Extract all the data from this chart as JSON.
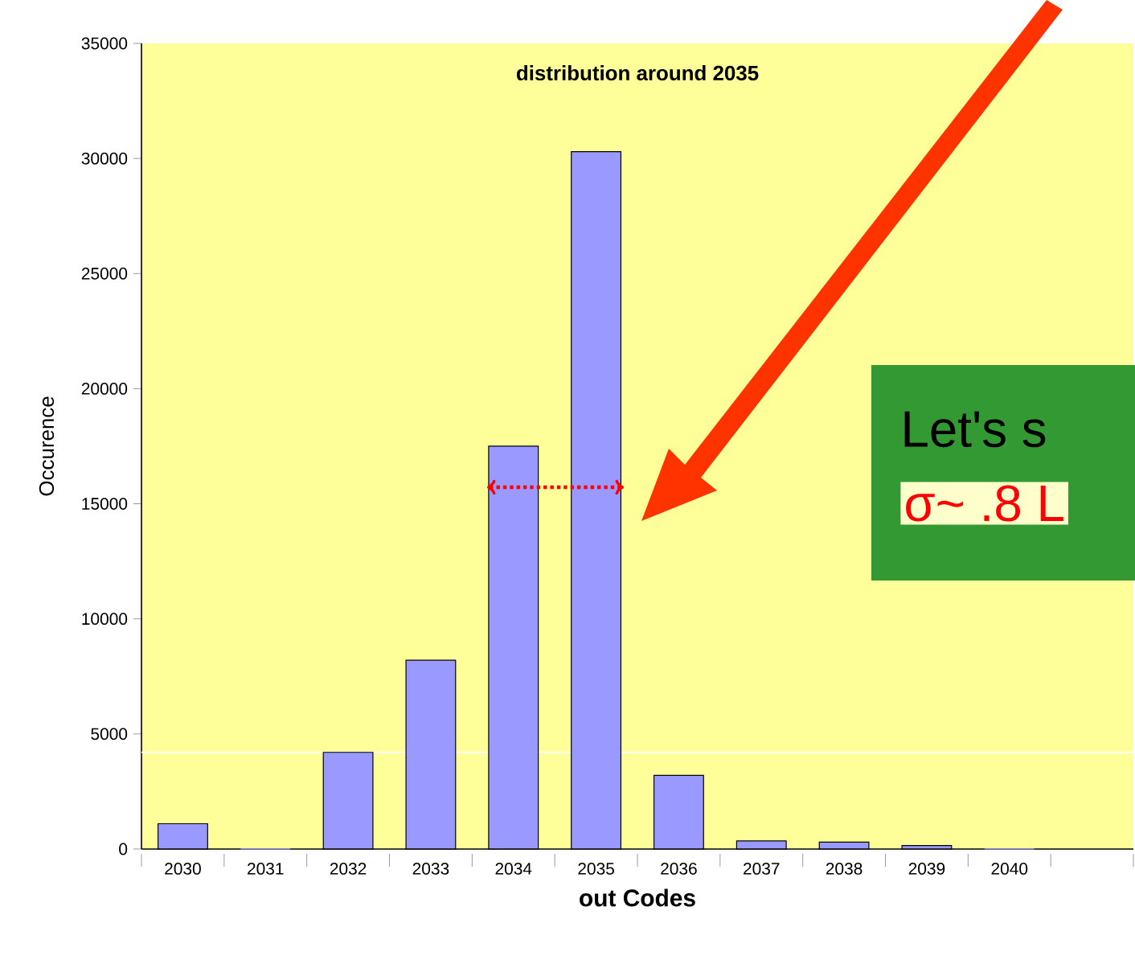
{
  "chart_data": {
    "type": "bar",
    "title": "distribution around 2035",
    "xlabel": "out Codes",
    "ylabel": "Occurence",
    "categories": [
      "2030",
      "2031",
      "2032",
      "2033",
      "2034",
      "2035",
      "2036",
      "2037",
      "2038",
      "2039",
      "2040",
      null
    ],
    "values": [
      1100,
      0,
      4200,
      8200,
      17500,
      30300,
      3200,
      350,
      300,
      150,
      0,
      null
    ],
    "color": "#9999ff",
    "ylim": [
      0,
      35000
    ],
    "yticks": [
      0,
      5000,
      10000,
      15000,
      20000,
      25000,
      30000,
      35000
    ],
    "grid": false,
    "ref_lines": [
      {
        "axis": "y",
        "value": 4200,
        "color": "#ffffff"
      }
    ],
    "annotations": [
      "Let's s",
      "σ~ .8 L"
    ]
  }
}
